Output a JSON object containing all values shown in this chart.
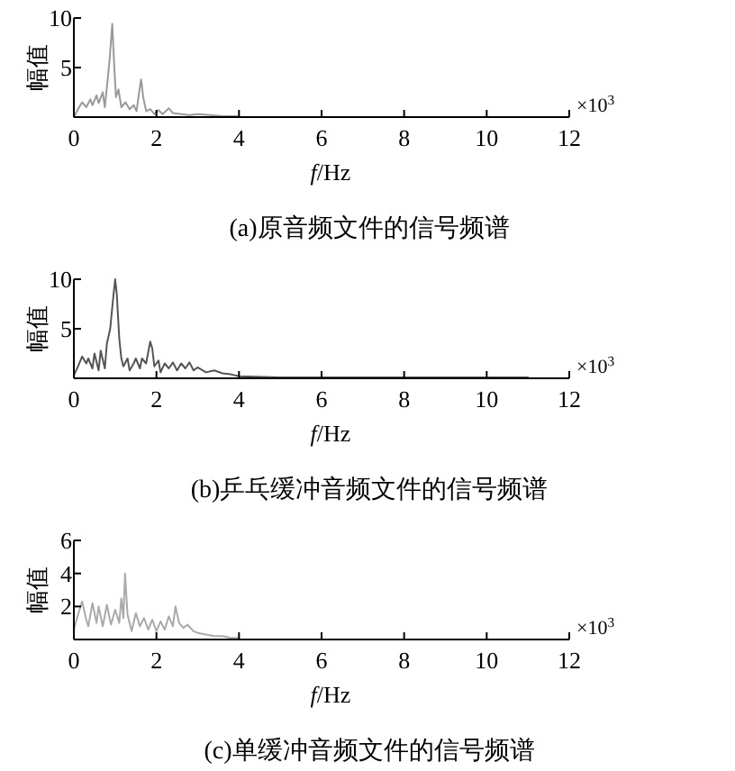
{
  "chart_data": [
    {
      "type": "line",
      "title": "(a)原音频文件的信号频谱",
      "xlabel": "*f*/Hz",
      "ylabel": "幅值",
      "annotations": [
        "×10$^{3}$"
      ],
      "xlim": [
        0,
        12
      ],
      "ylim": [
        0,
        10
      ],
      "xticks": [
        0,
        2,
        4,
        6,
        8,
        10,
        12
      ],
      "yticks": [
        5,
        10
      ],
      "series": [
        {
          "color": "#9a9a9a",
          "x": [
            0,
            0.1,
            0.2,
            0.3,
            0.4,
            0.45,
            0.55,
            0.6,
            0.7,
            0.75,
            0.8,
            0.87,
            0.93,
            0.98,
            1.02,
            1.08,
            1.15,
            1.25,
            1.35,
            1.45,
            1.52,
            1.58,
            1.63,
            1.68,
            1.75,
            1.85,
            1.95,
            2.05,
            2.15,
            2.3,
            2.4,
            2.6,
            2.8,
            3.0,
            3.3,
            3.6,
            4.0
          ],
          "values": [
            0,
            0.8,
            1.5,
            1.0,
            1.8,
            1.2,
            2.2,
            1.4,
            2.5,
            1.0,
            3.0,
            6,
            9.4,
            5,
            2.0,
            2.8,
            1.0,
            1.5,
            0.8,
            1.2,
            0.6,
            2.5,
            3.8,
            2.0,
            0.6,
            0.8,
            0.3,
            0.7,
            0.3,
            0.9,
            0.4,
            0.3,
            0.2,
            0.3,
            0.2,
            0.1,
            0.1
          ]
        }
      ]
    },
    {
      "type": "line",
      "title": "(b)乒乓缓冲音频文件的信号频谱",
      "xlabel": "*f*/Hz",
      "ylabel": "幅值",
      "annotations": [
        "×10$^{3}$"
      ],
      "xlim": [
        0,
        12
      ],
      "ylim": [
        0,
        10
      ],
      "xticks": [
        0,
        2,
        4,
        6,
        8,
        10,
        12
      ],
      "yticks": [
        5,
        10
      ],
      "series": [
        {
          "color": "#555555",
          "x": [
            0,
            0.1,
            0.2,
            0.3,
            0.35,
            0.45,
            0.5,
            0.6,
            0.65,
            0.75,
            0.8,
            0.88,
            0.95,
            1.0,
            1.04,
            1.1,
            1.15,
            1.2,
            1.3,
            1.35,
            1.45,
            1.5,
            1.6,
            1.65,
            1.75,
            1.85,
            1.9,
            1.95,
            2.05,
            2.1,
            2.2,
            2.3,
            2.4,
            2.5,
            2.6,
            2.7,
            2.8,
            2.9,
            3.0,
            3.2,
            3.4,
            3.6,
            3.8,
            4.0,
            5,
            7,
            9,
            11
          ],
          "values": [
            0.3,
            1.2,
            2.2,
            1.5,
            2.0,
            1.0,
            2.5,
            0.8,
            2.8,
            1.0,
            3.5,
            5.0,
            8,
            10,
            8.5,
            4.0,
            2.0,
            1.2,
            2.0,
            0.8,
            1.5,
            2.0,
            1.0,
            2.0,
            1.5,
            3.7,
            3.0,
            1.2,
            1.8,
            0.6,
            1.5,
            1.0,
            1.6,
            0.8,
            1.5,
            1.0,
            1.6,
            0.8,
            1.1,
            0.6,
            0.8,
            0.5,
            0.4,
            0.2,
            0.1,
            0.1,
            0.1,
            0.1
          ]
        }
      ]
    },
    {
      "type": "line",
      "title": "(c)单缓冲音频文件的信号频谱",
      "xlabel": "*f*/Hz",
      "ylabel": "幅值",
      "annotations": [
        "×10$^{3}$"
      ],
      "xlim": [
        0,
        12
      ],
      "ylim": [
        0,
        6
      ],
      "xticks": [
        0,
        2,
        4,
        6,
        8,
        10,
        12
      ],
      "yticks": [
        2,
        4,
        6
      ],
      "series": [
        {
          "color": "#aaaaaa",
          "x": [
            0,
            0.1,
            0.2,
            0.3,
            0.35,
            0.45,
            0.55,
            0.6,
            0.7,
            0.8,
            0.9,
            1.0,
            1.1,
            1.15,
            1.2,
            1.24,
            1.3,
            1.4,
            1.5,
            1.6,
            1.7,
            1.8,
            1.9,
            2.0,
            2.1,
            2.2,
            2.3,
            2.4,
            2.46,
            2.55,
            2.65,
            2.75,
            2.9,
            3.0,
            3.2,
            3.4,
            3.6,
            3.8,
            4.0
          ],
          "values": [
            0.6,
            1.5,
            2.3,
            1.2,
            0.8,
            2.2,
            1.0,
            2.0,
            0.8,
            2.1,
            0.9,
            1.8,
            1.0,
            2.5,
            1.3,
            4.0,
            1.5,
            0.5,
            1.6,
            0.8,
            1.3,
            0.6,
            1.2,
            0.5,
            1.1,
            0.6,
            1.4,
            0.8,
            2.0,
            1.0,
            0.7,
            0.9,
            0.5,
            0.4,
            0.3,
            0.2,
            0.2,
            0.1,
            0.1
          ]
        }
      ]
    }
  ]
}
